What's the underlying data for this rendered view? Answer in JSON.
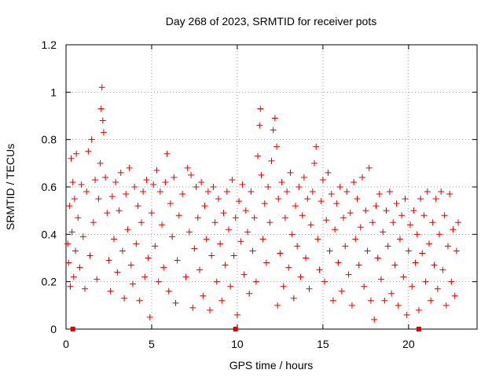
{
  "chart_data": {
    "type": "scatter",
    "title": "Day 268 of 2023, SRMTID for receiver pots",
    "xlabel": "GPS time / hours",
    "ylabel": "SRMTID / TECUs",
    "xlim": [
      0,
      24
    ],
    "ylim": [
      0,
      1.2
    ],
    "x_ticks": [
      0,
      5,
      10,
      15,
      20
    ],
    "x_tick_labels": [
      "0",
      "5",
      "10",
      "15",
      "20"
    ],
    "y_ticks": [
      0,
      0.2,
      0.4,
      0.6,
      0.8,
      1.0,
      1.2
    ],
    "y_tick_labels": [
      "0",
      "0.2",
      "0.4",
      "0.6",
      "0.8",
      "1",
      "1.2"
    ],
    "grid": true,
    "marker": "plus",
    "color": "#dd0000",
    "baseline_markers_x": [
      0.4,
      9.9,
      20.6
    ],
    "series": [
      {
        "name": "SRMTID",
        "points": [
          [
            0.1,
            0.36
          ],
          [
            0.15,
            0.28
          ],
          [
            0.2,
            0.52
          ],
          [
            0.25,
            0.18
          ],
          [
            0.3,
            0.72
          ],
          [
            0.35,
            0.41
          ],
          [
            0.4,
            0.62
          ],
          [
            0.45,
            0.22
          ],
          [
            0.5,
            0.55
          ],
          [
            0.55,
            0.33
          ],
          [
            0.6,
            0.74
          ],
          [
            0.7,
            0.47
          ],
          [
            0.8,
            0.26
          ],
          [
            0.9,
            0.61
          ],
          [
            1.0,
            0.39
          ],
          [
            1.1,
            0.17
          ],
          [
            1.2,
            0.58
          ],
          [
            1.3,
            0.75
          ],
          [
            1.4,
            0.31
          ],
          [
            1.5,
            0.8
          ],
          [
            1.6,
            0.45
          ],
          [
            1.7,
            0.63
          ],
          [
            1.8,
            0.21
          ],
          [
            1.9,
            0.55
          ],
          [
            2.0,
            0.7
          ],
          [
            2.05,
            0.93
          ],
          [
            2.1,
            1.02
          ],
          [
            2.15,
            0.88
          ],
          [
            2.2,
            0.83
          ],
          [
            2.3,
            0.64
          ],
          [
            2.4,
            0.49
          ],
          [
            2.5,
            0.29
          ],
          [
            2.6,
            0.16
          ],
          [
            2.7,
            0.56
          ],
          [
            2.8,
            0.38
          ],
          [
            2.9,
            0.62
          ],
          [
            3.0,
            0.24
          ],
          [
            3.1,
            0.5
          ],
          [
            3.2,
            0.66
          ],
          [
            3.3,
            0.33
          ],
          [
            3.4,
            0.13
          ],
          [
            3.5,
            0.57
          ],
          [
            3.6,
            0.42
          ],
          [
            3.7,
            0.68
          ],
          [
            3.8,
            0.27
          ],
          [
            3.9,
            0.19
          ],
          [
            4.0,
            0.6
          ],
          [
            4.1,
            0.36
          ],
          [
            4.2,
            0.52
          ],
          [
            4.3,
            0.12
          ],
          [
            4.4,
            0.45
          ],
          [
            4.5,
            0.58
          ],
          [
            4.6,
            0.22
          ],
          [
            4.7,
            0.63
          ],
          [
            4.8,
            0.3
          ],
          [
            4.9,
            0.05
          ],
          [
            5.0,
            0.49
          ],
          [
            5.1,
            0.61
          ],
          [
            5.2,
            0.35
          ],
          [
            5.3,
            0.67
          ],
          [
            5.4,
            0.2
          ],
          [
            5.5,
            0.58
          ],
          [
            5.6,
            0.44
          ],
          [
            5.7,
            0.26
          ],
          [
            5.8,
            0.62
          ],
          [
            5.9,
            0.74
          ],
          [
            6.0,
            0.16
          ],
          [
            6.1,
            0.53
          ],
          [
            6.2,
            0.39
          ],
          [
            6.3,
            0.64
          ],
          [
            6.4,
            0.11
          ],
          [
            6.5,
            0.29
          ],
          [
            6.6,
            0.48
          ],
          [
            6.8,
            0.57
          ],
          [
            7.0,
            0.22
          ],
          [
            7.1,
            0.68
          ],
          [
            7.2,
            0.41
          ],
          [
            7.3,
            0.65
          ],
          [
            7.4,
            0.09
          ],
          [
            7.5,
            0.34
          ],
          [
            7.6,
            0.6
          ],
          [
            7.7,
            0.47
          ],
          [
            7.8,
            0.25
          ],
          [
            7.9,
            0.62
          ],
          [
            8.0,
            0.14
          ],
          [
            8.1,
            0.52
          ],
          [
            8.2,
            0.38
          ],
          [
            8.3,
            0.58
          ],
          [
            8.4,
            0.08
          ],
          [
            8.5,
            0.31
          ],
          [
            8.6,
            0.6
          ],
          [
            8.7,
            0.45
          ],
          [
            8.8,
            0.2
          ],
          [
            8.9,
            0.55
          ],
          [
            9.0,
            0.36
          ],
          [
            9.1,
            0.12
          ],
          [
            9.2,
            0.49
          ],
          [
            9.3,
            0.27
          ],
          [
            9.4,
            0.58
          ],
          [
            9.5,
            0.42
          ],
          [
            9.6,
            0.18
          ],
          [
            9.7,
            0.63
          ],
          [
            9.8,
            0.31
          ],
          [
            9.9,
            0.47
          ],
          [
            10.0,
            0.06
          ],
          [
            10.1,
            0.54
          ],
          [
            10.2,
            0.37
          ],
          [
            10.3,
            0.61
          ],
          [
            10.4,
            0.23
          ],
          [
            10.5,
            0.5
          ],
          [
            10.6,
            0.41
          ],
          [
            10.7,
            0.15
          ],
          [
            10.8,
            0.58
          ],
          [
            10.9,
            0.33
          ],
          [
            11.0,
            0.47
          ],
          [
            11.1,
            0.2
          ],
          [
            11.2,
            0.73
          ],
          [
            11.3,
            0.86
          ],
          [
            11.35,
            0.93
          ],
          [
            11.4,
            0.65
          ],
          [
            11.5,
            0.38
          ],
          [
            11.6,
            0.53
          ],
          [
            11.7,
            0.28
          ],
          [
            11.8,
            0.6
          ],
          [
            11.9,
            0.45
          ],
          [
            12.0,
            0.71
          ],
          [
            12.1,
            0.84
          ],
          [
            12.2,
            0.89
          ],
          [
            12.3,
            0.77
          ],
          [
            12.35,
            0.1
          ],
          [
            12.4,
            0.55
          ],
          [
            12.5,
            0.32
          ],
          [
            12.6,
            0.62
          ],
          [
            12.7,
            0.18
          ],
          [
            12.8,
            0.47
          ],
          [
            12.9,
            0.58
          ],
          [
            13.0,
            0.26
          ],
          [
            13.1,
            0.66
          ],
          [
            13.2,
            0.4
          ],
          [
            13.3,
            0.13
          ],
          [
            13.4,
            0.52
          ],
          [
            13.5,
            0.35
          ],
          [
            13.6,
            0.6
          ],
          [
            13.7,
            0.22
          ],
          [
            13.8,
            0.48
          ],
          [
            13.9,
            0.64
          ],
          [
            14.0,
            0.3
          ],
          [
            14.1,
            0.55
          ],
          [
            14.2,
            0.17
          ],
          [
            14.3,
            0.44
          ],
          [
            14.4,
            0.58
          ],
          [
            14.5,
            0.7
          ],
          [
            14.6,
            0.77
          ],
          [
            14.7,
            0.38
          ],
          [
            14.8,
            0.25
          ],
          [
            14.9,
            0.54
          ],
          [
            15.0,
            0.63
          ],
          [
            15.1,
            0.2
          ],
          [
            15.2,
            0.46
          ],
          [
            15.3,
            0.66
          ],
          [
            15.4,
            0.33
          ],
          [
            15.5,
            0.57
          ],
          [
            15.6,
            0.12
          ],
          [
            15.7,
            0.42
          ],
          [
            15.8,
            0.53
          ],
          [
            15.9,
            0.28
          ],
          [
            16.0,
            0.6
          ],
          [
            16.1,
            0.16
          ],
          [
            16.2,
            0.47
          ],
          [
            16.3,
            0.35
          ],
          [
            16.4,
            0.58
          ],
          [
            16.5,
            0.23
          ],
          [
            16.6,
            0.49
          ],
          [
            16.7,
            0.1
          ],
          [
            16.8,
            0.62
          ],
          [
            16.9,
            0.38
          ],
          [
            17.0,
            0.55
          ],
          [
            17.1,
            0.27
          ],
          [
            17.2,
            0.43
          ],
          [
            17.3,
            0.64
          ],
          [
            17.4,
            0.18
          ],
          [
            17.5,
            0.5
          ],
          [
            17.6,
            0.33
          ],
          [
            17.7,
            0.68
          ],
          [
            17.8,
            0.12
          ],
          [
            17.9,
            0.45
          ],
          [
            18.0,
            0.04
          ],
          [
            18.1,
            0.52
          ],
          [
            18.2,
            0.3
          ],
          [
            18.3,
            0.57
          ],
          [
            18.4,
            0.21
          ],
          [
            18.5,
            0.41
          ],
          [
            18.6,
            0.12
          ],
          [
            18.7,
            0.5
          ],
          [
            18.8,
            0.35
          ],
          [
            18.9,
            0.58
          ],
          [
            19.0,
            0.15
          ],
          [
            19.1,
            0.45
          ],
          [
            19.2,
            0.27
          ],
          [
            19.3,
            0.53
          ],
          [
            19.4,
            0.1
          ],
          [
            19.5,
            0.38
          ],
          [
            19.6,
            0.48
          ],
          [
            19.7,
            0.22
          ],
          [
            19.8,
            0.55
          ],
          [
            19.9,
            0.06
          ],
          [
            20.0,
            0.33
          ],
          [
            20.1,
            0.44
          ],
          [
            20.2,
            0.18
          ],
          [
            20.3,
            0.5
          ],
          [
            20.4,
            0.28
          ],
          [
            20.5,
            0.4
          ],
          [
            20.6,
            0.08
          ],
          [
            20.7,
            0.55
          ],
          [
            20.8,
            0.32
          ],
          [
            20.9,
            0.48
          ],
          [
            21.0,
            0.2
          ],
          [
            21.1,
            0.58
          ],
          [
            21.2,
            0.36
          ],
          [
            21.3,
            0.12
          ],
          [
            21.4,
            0.45
          ],
          [
            21.5,
            0.27
          ],
          [
            21.6,
            0.55
          ],
          [
            21.7,
            0.17
          ],
          [
            21.8,
            0.4
          ],
          [
            21.9,
            0.58
          ],
          [
            22.0,
            0.25
          ],
          [
            22.1,
            0.48
          ],
          [
            22.2,
            0.1
          ],
          [
            22.3,
            0.35
          ],
          [
            22.4,
            0.57
          ],
          [
            22.5,
            0.2
          ],
          [
            22.6,
            0.42
          ],
          [
            22.7,
            0.14
          ],
          [
            22.8,
            0.33
          ],
          [
            22.9,
            0.45
          ]
        ]
      }
    ]
  }
}
